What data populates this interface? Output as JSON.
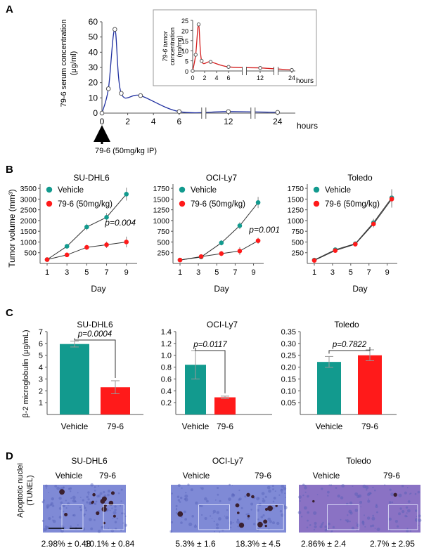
{
  "panels": {
    "a": "A",
    "b": "B",
    "c": "C",
    "d": "D"
  },
  "panel_a": {
    "ylabel_line1": "79-6 serum concentration",
    "ylabel_line2": "(μg/ml)",
    "xlabel": "hours",
    "arrow_label": "79-6 (50mg/kg IP)",
    "inset_ylabel_line1": "79-6 tumor",
    "inset_ylabel_line2": "concentration",
    "inset_ylabel_line3": "(ng/mg)",
    "inset_xlabel": "hours"
  },
  "panel_b": {
    "ylabel": "Tumor volume (mm³)",
    "xlabel": "Day"
  },
  "panel_c": {
    "ylabel": "β-2 microglobulin (μg/mL)"
  },
  "panel_d": {
    "ylabel_line1": "Apoptotic nuclei",
    "ylabel_line2": "(TUNEL)",
    "groups": [
      {
        "title": "SU-DHL6",
        "labels": [
          "Vehicle",
          "79-6"
        ],
        "values": [
          "2.98% ± 0.48",
          "10.1% ± 0.84"
        ]
      },
      {
        "title": "OCI-Ly7",
        "labels": [
          "Vehicle",
          "79-6"
        ],
        "values": [
          "5.3% ± 1.6",
          "18.3% ± 4.5"
        ]
      },
      {
        "title": "Toledo",
        "labels": [
          "Vehicle",
          "79-6"
        ],
        "values": [
          "2.86% ± 2.4",
          "2.7% ± 2.95"
        ]
      }
    ],
    "colors": {
      "stain_base": "#7f8ad6",
      "stain_purple": "#8a72c4",
      "stain_dark": "#3a2030"
    }
  },
  "colors": {
    "serum": "#1f2fa0",
    "tumor": "#d42020",
    "vehicle": "#129a8e",
    "treated": "#ff1a1a"
  },
  "chart_data": [
    {
      "type": "line",
      "ylim": [
        0,
        60
      ],
      "yticks": [
        0,
        10,
        20,
        30,
        40,
        50,
        60
      ],
      "xticks": [
        "0",
        "2",
        "4",
        "6",
        "12",
        "24"
      ],
      "axis_break": true,
      "series": [
        {
          "x": [
            0,
            0.5,
            1,
            1.5,
            3,
            6,
            12,
            24
          ],
          "y": [
            0,
            16,
            55,
            13,
            11.5,
            1,
            1,
            0.5
          ]
        }
      ]
    },
    {
      "type": "line",
      "inset": true,
      "ylim": [
        0,
        25
      ],
      "yticks": [
        0,
        5,
        10,
        15,
        20,
        25
      ],
      "xticks": [
        "0",
        "2",
        "4",
        "6",
        "12",
        "24"
      ],
      "axis_break": true,
      "series": [
        {
          "x": [
            0,
            0.5,
            1,
            1.5,
            3,
            6,
            12,
            24
          ],
          "y": [
            0,
            8,
            23,
            5,
            4.5,
            2,
            1.5,
            0.5
          ]
        }
      ]
    },
    {
      "type": "line",
      "title": "SU-DHL6",
      "ylim": [
        0,
        3700
      ],
      "yticks": [
        500,
        1000,
        1500,
        2000,
        2500,
        3000,
        3500
      ],
      "xticks": [
        1,
        3,
        5,
        7,
        9
      ],
      "annotation": "p=0.004",
      "series": [
        {
          "name": "Vehicle",
          "x": [
            1,
            3,
            5,
            7,
            9
          ],
          "y": [
            180,
            800,
            1700,
            2150,
            3230
          ],
          "err": [
            30,
            80,
            150,
            200,
            300
          ]
        },
        {
          "name": "79-6 (50mg/kg)",
          "x": [
            1,
            3,
            5,
            7,
            9
          ],
          "y": [
            180,
            400,
            750,
            870,
            1000
          ],
          "err": [
            30,
            60,
            120,
            150,
            250
          ]
        }
      ]
    },
    {
      "type": "line",
      "title": "OCI-Ly7",
      "ylim": [
        0,
        1850
      ],
      "yticks": [
        250,
        500,
        750,
        1000,
        1250,
        1500,
        1750
      ],
      "xticks": [
        1,
        3,
        5,
        7,
        9
      ],
      "annotation": "p=0.001",
      "series": [
        {
          "name": "Vehicle",
          "x": [
            1,
            3.3,
            5.5,
            7.5,
            9.5
          ],
          "y": [
            80,
            150,
            480,
            880,
            1420
          ],
          "err": [
            20,
            30,
            60,
            80,
            130
          ]
        },
        {
          "name": "79-6 (50mg/kg)",
          "x": [
            1,
            3.3,
            5.5,
            7.5,
            9.5
          ],
          "y": [
            80,
            160,
            230,
            290,
            530
          ],
          "err": [
            20,
            30,
            60,
            90,
            70
          ]
        }
      ]
    },
    {
      "type": "line",
      "title": "Toledo",
      "ylim": [
        0,
        1850
      ],
      "yticks": [
        250,
        500,
        750,
        1000,
        1250,
        1500,
        1750
      ],
      "xticks": [
        1,
        3,
        5,
        7,
        9
      ],
      "series": [
        {
          "name": "Vehicle",
          "x": [
            1,
            3.3,
            5.5,
            7.5,
            9.5
          ],
          "y": [
            80,
            320,
            460,
            950,
            1530
          ],
          "err": [
            20,
            40,
            40,
            90,
            200
          ]
        },
        {
          "name": "79-6 (50mg/kg)",
          "x": [
            1,
            3.3,
            5.5,
            7.5,
            9.5
          ],
          "y": [
            70,
            300,
            450,
            920,
            1500
          ],
          "err": [
            20,
            40,
            40,
            80,
            200
          ]
        }
      ]
    },
    {
      "type": "bar",
      "title": "SU-DHL6",
      "categories": [
        "Vehicle",
        "79-6"
      ],
      "values": [
        5.95,
        2.3
      ],
      "err": [
        0.25,
        0.55
      ],
      "ylim": [
        0,
        7
      ],
      "yticks": [
        1,
        2,
        3,
        4,
        5,
        6,
        7
      ],
      "annotation": "p=0.0004"
    },
    {
      "type": "bar",
      "title": "OCI-Ly7",
      "categories": [
        "Vehicle",
        "79-6"
      ],
      "values": [
        0.84,
        0.29
      ],
      "err": [
        0.24,
        0.02
      ],
      "ylim": [
        0,
        1.4
      ],
      "yticks": [
        0.2,
        0.4,
        0.6,
        0.8,
        1.0,
        1.2,
        1.4
      ],
      "ytick_labels": [
        "0.2",
        "0.4",
        "0.6",
        "0.8",
        "1.0",
        "1.2",
        "1.4"
      ],
      "annotation": "p=0.0117"
    },
    {
      "type": "bar",
      "title": "Toledo",
      "categories": [
        "Vehicle",
        "79-6"
      ],
      "values": [
        0.222,
        0.25
      ],
      "err": [
        0.023,
        0.023
      ],
      "ylim": [
        0,
        0.35
      ],
      "yticks": [
        0.05,
        0.1,
        0.15,
        0.2,
        0.25,
        0.3,
        0.35
      ],
      "ytick_labels": [
        "0.05",
        "0.10",
        "0.15",
        "0.20",
        "0.25",
        "0.30",
        "0.35"
      ],
      "annotation": "p=0.7822"
    }
  ]
}
